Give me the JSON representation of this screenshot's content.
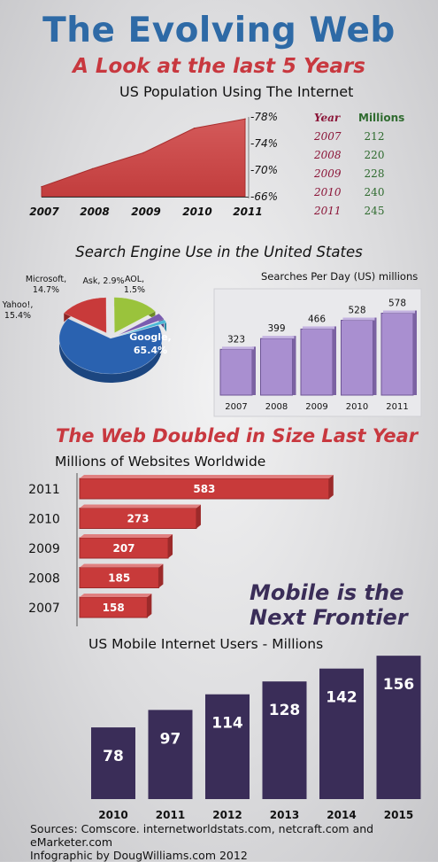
{
  "header": {
    "title": "The Evolving Web",
    "subtitle": "A Look at the last 5 Years"
  },
  "population": {
    "table_year_header": "Year",
    "table_millions_header": "Millions",
    "rows": [
      {
        "year": "2007",
        "millions": "212"
      },
      {
        "year": "2008",
        "millions": "220"
      },
      {
        "year": "2009",
        "millions": "228"
      },
      {
        "year": "2010",
        "millions": "240"
      },
      {
        "year": "2011",
        "millions": "245"
      }
    ]
  },
  "search": {
    "section_title": "Search Engine Use in the United States"
  },
  "web_size": {
    "headline": "The Web Doubled in Size Last Year"
  },
  "mobile": {
    "headline_line1": "Mobile is the",
    "headline_line2": "Next Frontier"
  },
  "footer": {
    "sources": "Sources: Comscore. internetworldstats.com, netcraft.com and eMarketer.com",
    "credit": "Infographic by DougWilliams.com 2012"
  },
  "colors": {
    "title_blue": "#2e6aa6",
    "accent_red": "#c8383f",
    "purple_bar": "#a98fd0",
    "mobile_bar": "#3a2d58",
    "google_blue": "#2a62b0",
    "yahoo_red": "#c83a3a",
    "microsoft_green": "#9ac33c",
    "ask_purple": "#7a5cb0",
    "aol_cyan": "#4cb8d6"
  },
  "chart_data": [
    {
      "id": "us-population",
      "type": "area",
      "title": "US Population Using The Internet",
      "x": [
        "2007",
        "2008",
        "2009",
        "2010",
        "2011"
      ],
      "values": [
        67.5,
        70.2,
        72.6,
        76.3,
        77.7
      ],
      "ytick_labels": [
        "-78%",
        "-74%",
        "-70%",
        "-66%"
      ],
      "ylim": [
        66,
        78
      ]
    },
    {
      "id": "search-share",
      "type": "pie",
      "slices": [
        {
          "label": "Google,",
          "value_label": "65.4%",
          "value": 65.4
        },
        {
          "label": "Yahoo!,",
          "value_label": "15.4%",
          "value": 15.4
        },
        {
          "label": "Microsoft,",
          "value_label": "14.7%",
          "value": 14.7
        },
        {
          "label": "Ask,",
          "value_label": "2.9%",
          "value": 2.9
        },
        {
          "label": "AOL,",
          "value_label": "1.5%",
          "value": 1.5
        }
      ]
    },
    {
      "id": "searches-per-day",
      "type": "bar",
      "title": "Searches Per Day (US) millions",
      "categories": [
        "2007",
        "2008",
        "2009",
        "2010",
        "2011"
      ],
      "values": [
        323,
        399,
        466,
        528,
        578
      ],
      "ylim": [
        0,
        600
      ]
    },
    {
      "id": "websites",
      "type": "bar",
      "orientation": "horizontal",
      "title": "Millions of Websites Worldwide",
      "categories": [
        "2011",
        "2010",
        "2009",
        "2008",
        "2007"
      ],
      "values": [
        583,
        273,
        207,
        185,
        158
      ],
      "xlim": [
        0,
        600
      ]
    },
    {
      "id": "mobile-users",
      "type": "bar",
      "title": "US Mobile Internet Users - Millions",
      "categories": [
        "2010",
        "2011",
        "2012",
        "2013",
        "2014",
        "2015"
      ],
      "values": [
        78,
        97,
        114,
        128,
        142,
        156
      ],
      "ylim": [
        0,
        160
      ]
    }
  ]
}
